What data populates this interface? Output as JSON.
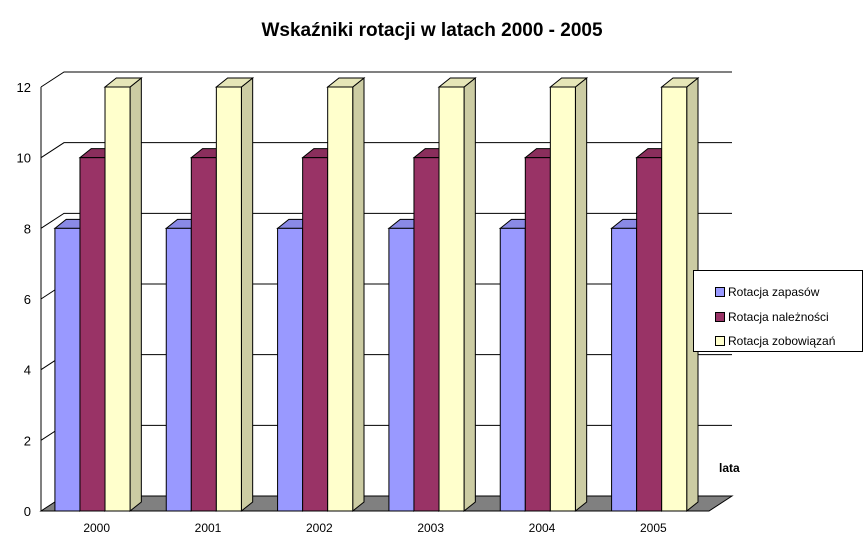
{
  "chart_data": {
    "type": "bar",
    "title": "Wskaźniki rotacji w latach 2000 - 2005",
    "xlabel": "lata",
    "ylabel": "",
    "categories": [
      "2000",
      "2001",
      "2002",
      "2003",
      "2004",
      "2005"
    ],
    "series": [
      {
        "name": "Rotacja zapasów",
        "values": [
          8,
          8,
          8,
          8,
          8,
          8
        ],
        "color": "#9999ff"
      },
      {
        "name": "Rotacja należności",
        "values": [
          10,
          10,
          10,
          10,
          10,
          10
        ],
        "color": "#993366"
      },
      {
        "name": "Rotacja zobowiązań",
        "values": [
          12,
          12,
          12,
          12,
          12,
          12
        ],
        "color": "#ffffcc"
      }
    ],
    "ylim": [
      0,
      12
    ],
    "yticks": [
      "0",
      "2",
      "4",
      "6",
      "8",
      "10",
      "12"
    ],
    "grid": true,
    "legend_position": "right",
    "style": "3d-clustered-column"
  }
}
